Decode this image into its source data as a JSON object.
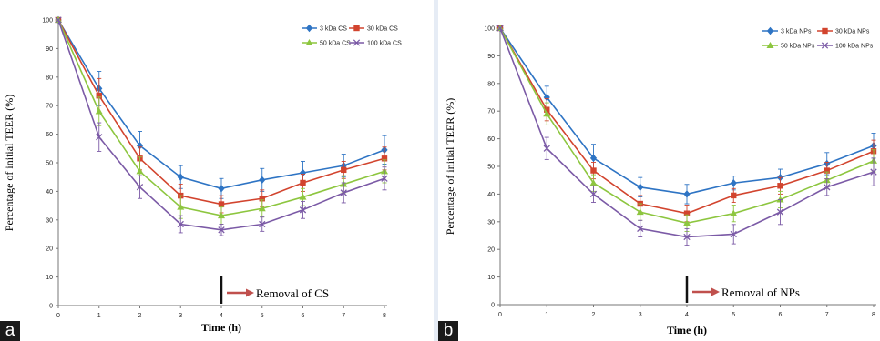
{
  "panels": [
    {
      "letter": "a",
      "chart_data": {
        "type": "line",
        "ylabel": "Percentage of initial TEER (%)",
        "xlabel": "Time (h)",
        "x": [
          0,
          1,
          2,
          3,
          4,
          5,
          6,
          7,
          8
        ],
        "xlim": [
          0,
          8
        ],
        "ylim": [
          0,
          100
        ],
        "yticks": [
          0,
          10,
          20,
          30,
          40,
          50,
          60,
          70,
          80,
          90,
          100
        ],
        "annotation": {
          "x": 4,
          "text": "Removal of  CS"
        },
        "legend_position": "top-right",
        "series": [
          {
            "name": "3 kDa CS",
            "color": "#2e74c4",
            "marker": "diamond",
            "values": [
              100,
              76,
              56,
              45,
              41,
              44,
              46.5,
              49,
              54.5
            ],
            "errors": [
              0,
              6,
              5,
              4,
              3.5,
              4,
              4,
              4,
              5
            ]
          },
          {
            "name": "30 kDa CS",
            "color": "#d2442e",
            "marker": "square",
            "values": [
              100,
              73.5,
              51.5,
              38.5,
              35.5,
              37.5,
              43,
              47.5,
              51.5
            ],
            "errors": [
              0,
              6,
              4,
              4,
              3,
              3,
              3,
              3,
              4
            ]
          },
          {
            "name": "50 kDa CS",
            "color": "#8dc63f",
            "marker": "triangle",
            "values": [
              100,
              68,
              47,
              34.5,
              31.5,
              34,
              38,
              42.5,
              47
            ],
            "errors": [
              0,
              5,
              5,
              4,
              3,
              3,
              3,
              3,
              4
            ]
          },
          {
            "name": "100 kDa CS",
            "color": "#7b5aa6",
            "marker": "x",
            "values": [
              100,
              59,
              41.5,
              28.5,
              26.5,
              28.5,
              33.5,
              39.5,
              44.5
            ],
            "errors": [
              0,
              5,
              4,
              3,
              2,
              2.5,
              3,
              3.5,
              4
            ]
          }
        ]
      }
    },
    {
      "letter": "b",
      "chart_data": {
        "type": "line",
        "ylabel": "Percentage of initial TEER (%)",
        "xlabel": "Time (h)",
        "x": [
          0,
          1,
          2,
          3,
          4,
          5,
          6,
          7,
          8
        ],
        "xlim": [
          0,
          8
        ],
        "ylim": [
          0,
          100
        ],
        "yticks": [
          0,
          10,
          20,
          30,
          40,
          50,
          60,
          70,
          80,
          90,
          100
        ],
        "annotation": {
          "x": 4,
          "text": "Removal of  NPs"
        },
        "legend_position": "top-right",
        "series": [
          {
            "name": "3 kDa NPs",
            "color": "#2e74c4",
            "marker": "diamond",
            "values": [
              100,
              75,
              53,
              42.5,
              40,
              44,
              46,
              51,
              57.5
            ],
            "errors": [
              0,
              4,
              5,
              3.5,
              3.5,
              2.5,
              3,
              4,
              4.5
            ]
          },
          {
            "name": "30 kDa NPs",
            "color": "#d2442e",
            "marker": "square",
            "values": [
              100,
              70.5,
              48.5,
              36.5,
              33,
              39.5,
              43,
              48.5,
              55.5
            ],
            "errors": [
              0,
              4,
              3,
              3,
              3,
              2.5,
              3,
              3,
              4
            ]
          },
          {
            "name": "50 kDa NPs",
            "color": "#8dc63f",
            "marker": "triangle",
            "values": [
              100,
              69,
              44,
              33.5,
              29.5,
              33,
              38,
              45,
              52
            ],
            "errors": [
              0,
              4,
              3,
              3,
              3,
              3,
              3,
              3,
              4
            ]
          },
          {
            "name": "100 kDa NPs",
            "color": "#7b5aa6",
            "marker": "x",
            "values": [
              100,
              56.5,
              40,
              27.5,
              24.5,
              25.5,
              33.5,
              42.5,
              48
            ],
            "errors": [
              0,
              4,
              3,
              3,
              3,
              3.5,
              4.5,
              3,
              5
            ]
          }
        ]
      }
    }
  ]
}
